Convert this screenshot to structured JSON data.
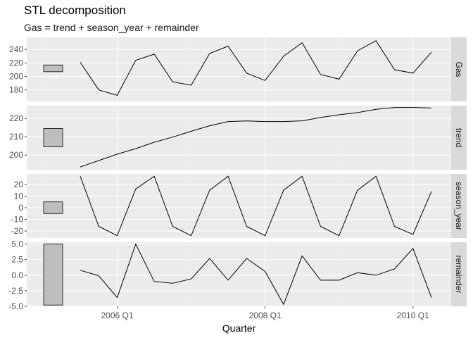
{
  "title": "STL decomposition",
  "subtitle": "Gas = trend + season_year + remainder",
  "chart_data": {
    "type": "line",
    "xlabel": "Quarter",
    "x_ticks": [
      "2006 Q1",
      "2008 Q1",
      "2010 Q1"
    ],
    "x": [
      "2005 Q3",
      "2005 Q4",
      "2006 Q1",
      "2006 Q2",
      "2006 Q3",
      "2006 Q4",
      "2007 Q1",
      "2007 Q2",
      "2007 Q3",
      "2007 Q4",
      "2008 Q1",
      "2008 Q2",
      "2008 Q3",
      "2008 Q4",
      "2009 Q1",
      "2009 Q2",
      "2009 Q3",
      "2009 Q4",
      "2010 Q1",
      "2010 Q2"
    ],
    "grid": true,
    "facet_strip_position": "right",
    "panels": [
      {
        "name": "Gas",
        "ylim": [
          163,
          258
        ],
        "y_ticks": [
          180,
          200,
          220,
          240
        ],
        "range_bar": [
          207,
          217
        ],
        "values": [
          221,
          180,
          172,
          224,
          233,
          192,
          187,
          234,
          245,
          205,
          194,
          230,
          250,
          203,
          196,
          238,
          253,
          210,
          205,
          236
        ]
      },
      {
        "name": "trend",
        "ylim": [
          192,
          227
        ],
        "y_ticks": [
          200,
          210,
          220
        ],
        "range_bar": [
          204.5,
          214.5
        ],
        "values": [
          193.5,
          197,
          200.5,
          203.5,
          207,
          209.8,
          213,
          216,
          218.3,
          218.6,
          218.3,
          218.3,
          218.7,
          220.5,
          222,
          223.2,
          225,
          226,
          226,
          225.7
        ]
      },
      {
        "name": "season_year",
        "ylim": [
          -26,
          29
        ],
        "y_ticks": [
          -20,
          -10,
          0,
          10,
          20
        ],
        "range_bar": [
          -5,
          5
        ],
        "values": [
          27,
          -16,
          -24,
          16,
          27,
          -16,
          -24,
          15,
          27,
          -16,
          -24,
          15,
          27,
          -16,
          -24,
          15,
          27,
          -16,
          -23,
          14
        ]
      },
      {
        "name": "remainder",
        "ylim": [
          -5.0,
          5.3
        ],
        "y_ticks": [
          -5.0,
          -2.5,
          0.0,
          2.5,
          5.0
        ],
        "y_tick_labels": [
          "-5.0",
          "-2.5",
          "0.0",
          "2.5",
          "5.0"
        ],
        "range_bar": [
          -4.8,
          5.0
        ],
        "values": [
          0.8,
          -0.1,
          -3.6,
          5.0,
          -1.0,
          -1.3,
          -0.6,
          2.7,
          -0.8,
          2.7,
          0.6,
          -4.7,
          3.1,
          -0.8,
          -0.8,
          0.4,
          0.0,
          1.0,
          4.3,
          -3.6
        ]
      }
    ]
  }
}
